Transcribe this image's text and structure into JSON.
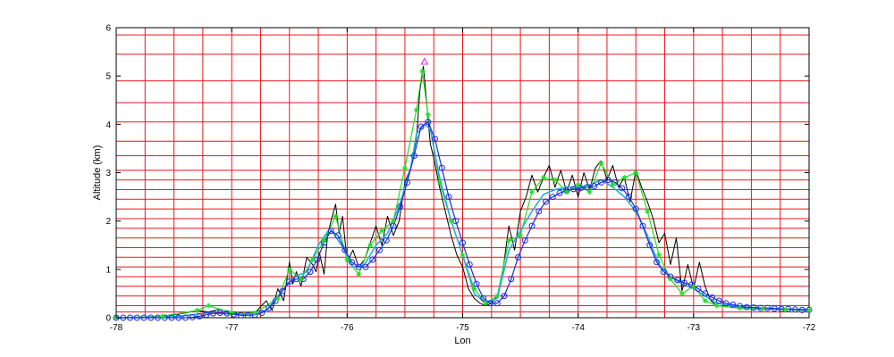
{
  "chart_data": {
    "type": "line",
    "xlabel": "Lon",
    "ylabel": "Altitude (km)",
    "xlim": [
      -78,
      -72
    ],
    "ylim": [
      0,
      6
    ],
    "xticks": [
      -78,
      -77,
      -76,
      -75,
      -74,
      -73,
      -72
    ],
    "yticks": [
      0,
      1,
      2,
      3,
      4,
      5,
      6
    ],
    "grid": true,
    "colors": {
      "grid": "#e8191c",
      "series_black": "#000000",
      "series_green": "#22dd22",
      "series_blue": "#1a2bdd",
      "series_cyan": "#20b0e0",
      "marker_magenta": "#e040e0"
    },
    "grid_lines_x": [
      -77.75,
      -77.5,
      -77.25,
      -77,
      -76.75,
      -76.5,
      -76.25,
      -76,
      -75.75,
      -75.5,
      -75.25,
      -75,
      -74.75,
      -74.5,
      -74.25,
      -74,
      -73.75,
      -73.5,
      -73.25,
      -73,
      -72.75,
      -72.5,
      -72.25
    ],
    "grid_lines_y": [
      0.12,
      0.25,
      0.45,
      0.65,
      0.85,
      1.05,
      1.25,
      1.45,
      1.65,
      1.85,
      2.05,
      2.25,
      2.45,
      2.65,
      2.85,
      3.05,
      3.35,
      3.65,
      4.05,
      4.45,
      4.9,
      5.45,
      5.85
    ],
    "series": [
      {
        "key": "black",
        "x": [
          -78,
          -77.8,
          -77.6,
          -77.4,
          -77.3,
          -77.2,
          -77.1,
          -77.0,
          -76.9,
          -76.8,
          -76.7,
          -76.65,
          -76.6,
          -76.55,
          -76.5,
          -76.47,
          -76.44,
          -76.4,
          -76.35,
          -76.3,
          -76.27,
          -76.24,
          -76.2,
          -76.17,
          -76.14,
          -76.1,
          -76.07,
          -76.04,
          -76.0,
          -75.95,
          -75.9,
          -75.85,
          -75.8,
          -75.75,
          -75.7,
          -75.65,
          -75.6,
          -75.55,
          -75.5,
          -75.45,
          -75.4,
          -75.37,
          -75.34,
          -75.31,
          -75.28,
          -75.25,
          -75.2,
          -75.15,
          -75.1,
          -75.05,
          -75.0,
          -74.95,
          -74.9,
          -74.85,
          -74.8,
          -74.75,
          -74.7,
          -74.65,
          -74.6,
          -74.55,
          -74.5,
          -74.45,
          -74.4,
          -74.35,
          -74.3,
          -74.25,
          -74.2,
          -74.15,
          -74.1,
          -74.05,
          -74.0,
          -73.95,
          -73.9,
          -73.85,
          -73.8,
          -73.75,
          -73.7,
          -73.65,
          -73.6,
          -73.55,
          -73.5,
          -73.45,
          -73.4,
          -73.35,
          -73.3,
          -73.25,
          -73.2,
          -73.15,
          -73.1,
          -73.05,
          -73.0,
          -72.95,
          -72.9,
          -72.85,
          -72.8,
          -72.6,
          -72.4,
          -72.2,
          -72.0
        ],
        "y": [
          0.0,
          0.0,
          0.02,
          0.1,
          0.15,
          0.12,
          0.18,
          0.08,
          0.1,
          0.1,
          0.35,
          0.15,
          0.6,
          0.35,
          1.15,
          0.7,
          0.95,
          0.65,
          1.25,
          1.1,
          0.95,
          1.35,
          0.9,
          1.7,
          2.0,
          2.35,
          1.75,
          2.1,
          1.15,
          1.4,
          1.05,
          1.2,
          1.55,
          1.9,
          1.5,
          2.1,
          1.7,
          2.0,
          2.8,
          3.1,
          3.7,
          4.7,
          5.2,
          4.4,
          3.6,
          3.3,
          2.7,
          2.2,
          1.7,
          1.3,
          1.05,
          0.6,
          0.4,
          0.3,
          0.25,
          0.3,
          0.45,
          1.0,
          1.9,
          1.4,
          2.2,
          2.5,
          2.95,
          2.6,
          2.9,
          3.15,
          2.7,
          3.05,
          2.6,
          2.95,
          2.5,
          3.0,
          2.65,
          3.1,
          3.25,
          2.85,
          3.15,
          2.7,
          2.9,
          2.4,
          3.05,
          2.7,
          2.4,
          2.05,
          1.55,
          1.75,
          1.1,
          1.65,
          0.55,
          1.1,
          0.6,
          1.15,
          0.65,
          0.35,
          0.25,
          0.2,
          0.18,
          0.17,
          0.15
        ]
      },
      {
        "key": "green",
        "x": [
          -78,
          -77.6,
          -77.3,
          -77.2,
          -77.0,
          -76.8,
          -76.6,
          -76.5,
          -76.4,
          -76.3,
          -76.2,
          -76.1,
          -76.0,
          -75.9,
          -75.8,
          -75.7,
          -75.6,
          -75.5,
          -75.4,
          -75.35,
          -75.3,
          -75.2,
          -75.1,
          -75.0,
          -74.9,
          -74.8,
          -74.7,
          -74.6,
          -74.5,
          -74.4,
          -74.3,
          -74.2,
          -74.1,
          -74.0,
          -73.9,
          -73.8,
          -73.7,
          -73.6,
          -73.5,
          -73.4,
          -73.3,
          -73.2,
          -73.1,
          -73.0,
          -72.9,
          -72.8,
          -72.6,
          -72.4,
          -72.2,
          -72.0
        ],
        "y": [
          0.0,
          0.03,
          0.15,
          0.25,
          0.1,
          0.1,
          0.4,
          1.0,
          0.8,
          1.2,
          1.6,
          2.1,
          1.2,
          0.9,
          1.5,
          1.8,
          2.0,
          3.1,
          4.3,
          5.1,
          4.2,
          2.8,
          2.0,
          1.3,
          0.6,
          0.3,
          0.45,
          1.6,
          1.7,
          2.6,
          2.9,
          2.85,
          2.6,
          2.75,
          2.6,
          3.2,
          2.75,
          2.9,
          3.0,
          2.2,
          1.3,
          0.8,
          0.5,
          0.65,
          0.35,
          0.25,
          0.2,
          0.18,
          0.17,
          0.15
        ]
      },
      {
        "key": "cyan",
        "x": [
          -78,
          -77.5,
          -77.2,
          -76.9,
          -76.7,
          -76.55,
          -76.45,
          -76.35,
          -76.25,
          -76.15,
          -76.05,
          -75.95,
          -75.85,
          -75.75,
          -75.65,
          -75.55,
          -75.45,
          -75.4,
          -75.33,
          -75.28,
          -75.2,
          -75.1,
          -75.0,
          -74.9,
          -74.8,
          -74.7,
          -74.6,
          -74.5,
          -74.4,
          -74.3,
          -74.2,
          -74.1,
          -74.0,
          -73.9,
          -73.8,
          -73.7,
          -73.6,
          -73.5,
          -73.4,
          -73.3,
          -73.2,
          -73.1,
          -73.0,
          -72.9,
          -72.8,
          -72.6,
          -72.4,
          -72.2,
          -72.0
        ],
        "y": [
          0.0,
          0.02,
          0.1,
          0.06,
          0.15,
          0.6,
          0.85,
          0.95,
          1.5,
          1.85,
          1.5,
          1.05,
          1.1,
          1.5,
          1.75,
          2.3,
          3.1,
          3.8,
          4.0,
          3.9,
          2.9,
          2.0,
          1.3,
          0.5,
          0.3,
          0.4,
          1.4,
          1.8,
          2.2,
          2.55,
          2.65,
          2.7,
          2.7,
          2.75,
          2.85,
          2.7,
          2.5,
          2.2,
          1.7,
          1.1,
          0.85,
          0.7,
          0.6,
          0.45,
          0.3,
          0.22,
          0.2,
          0.18,
          0.17
        ]
      },
      {
        "key": "blue",
        "marker": "circle",
        "x": [
          -78.0,
          -77.94,
          -77.88,
          -77.82,
          -77.76,
          -77.7,
          -77.64,
          -77.58,
          -77.52,
          -77.46,
          -77.4,
          -77.34,
          -77.28,
          -77.22,
          -77.16,
          -77.1,
          -77.04,
          -76.98,
          -76.92,
          -76.86,
          -76.8,
          -76.74,
          -76.68,
          -76.62,
          -76.56,
          -76.5,
          -76.44,
          -76.38,
          -76.32,
          -76.26,
          -76.2,
          -76.14,
          -76.08,
          -76.02,
          -75.96,
          -75.9,
          -75.84,
          -75.78,
          -75.72,
          -75.66,
          -75.6,
          -75.54,
          -75.48,
          -75.42,
          -75.36,
          -75.3,
          -75.24,
          -75.18,
          -75.12,
          -75.06,
          -75.0,
          -74.94,
          -74.88,
          -74.82,
          -74.76,
          -74.7,
          -74.64,
          -74.58,
          -74.52,
          -74.46,
          -74.4,
          -74.34,
          -74.28,
          -74.22,
          -74.16,
          -74.1,
          -74.04,
          -73.98,
          -73.92,
          -73.86,
          -73.8,
          -73.74,
          -73.68,
          -73.62,
          -73.56,
          -73.5,
          -73.44,
          -73.38,
          -73.32,
          -73.26,
          -73.2,
          -73.14,
          -73.08,
          -73.02,
          -72.96,
          -72.9,
          -72.84,
          -72.78,
          -72.72,
          -72.66,
          -72.6,
          -72.54,
          -72.48,
          -72.42,
          -72.36,
          -72.3,
          -72.24,
          -72.18,
          -72.12,
          -72.06,
          -72.0
        ],
        "y": [
          0.0,
          0.0,
          0.0,
          0.0,
          0.0,
          0.0,
          0.0,
          0.0,
          0.0,
          0.0,
          0.0,
          0.01,
          0.03,
          0.06,
          0.09,
          0.1,
          0.09,
          0.07,
          0.05,
          0.05,
          0.06,
          0.1,
          0.2,
          0.35,
          0.55,
          0.75,
          0.8,
          0.8,
          0.95,
          1.2,
          1.55,
          1.8,
          1.7,
          1.4,
          1.15,
          1.05,
          1.05,
          1.2,
          1.4,
          1.6,
          1.9,
          2.3,
          2.8,
          3.35,
          3.95,
          4.05,
          3.7,
          3.1,
          2.5,
          2.0,
          1.55,
          1.1,
          0.7,
          0.4,
          0.3,
          0.3,
          0.45,
          0.8,
          1.25,
          1.6,
          1.9,
          2.2,
          2.4,
          2.5,
          2.58,
          2.63,
          2.66,
          2.68,
          2.7,
          2.72,
          2.8,
          2.85,
          2.8,
          2.68,
          2.5,
          2.25,
          1.9,
          1.5,
          1.15,
          0.95,
          0.85,
          0.78,
          0.72,
          0.68,
          0.6,
          0.5,
          0.42,
          0.35,
          0.3,
          0.27,
          0.24,
          0.22,
          0.21,
          0.2,
          0.2,
          0.19,
          0.18,
          0.18,
          0.17,
          0.16,
          0.16
        ]
      }
    ],
    "annotations": [
      {
        "key": "peak-marker",
        "marker": "triangle",
        "x": -75.33,
        "y": 5.3
      }
    ]
  }
}
